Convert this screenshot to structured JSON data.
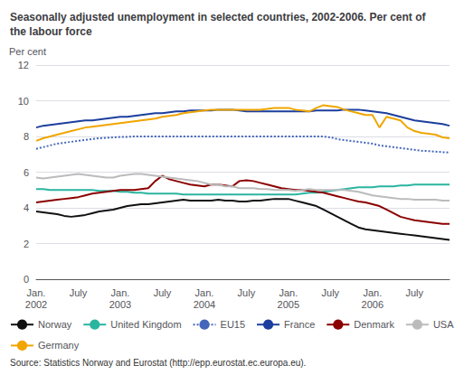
{
  "chart_data": {
    "type": "line",
    "title": "Seasonally adjusted unemployment in selected countries, 2002-2006. Per cent of\nthe labour force",
    "ylabel": "Per cent",
    "annotations": [
      "Source: Statistics Norway and Eurostat (http://epp.eurostat.ec.europa.eu)."
    ],
    "categories": [
      "Jan.\n2002",
      null,
      null,
      null,
      null,
      null,
      "July",
      null,
      null,
      null,
      null,
      null,
      "Jan.\n2003",
      null,
      null,
      null,
      null,
      null,
      "July",
      null,
      null,
      null,
      null,
      null,
      "Jan.\n2004",
      null,
      null,
      null,
      null,
      null,
      "July",
      null,
      null,
      null,
      null,
      null,
      "Jan.\n2005",
      null,
      null,
      null,
      null,
      null,
      "July",
      null,
      null,
      null,
      null,
      null,
      "Jan.\n2006",
      null,
      null,
      null,
      null,
      null,
      "July",
      null,
      null,
      null,
      null,
      null
    ],
    "ylim": [
      0,
      12
    ],
    "yticks": [
      0,
      2,
      4,
      6,
      8,
      10,
      12
    ],
    "grid": true,
    "legend": "bottom",
    "series": [
      {
        "name": "Norway",
        "color": "#111111",
        "line_style": "solid",
        "values": [
          3.8,
          3.75,
          3.7,
          3.65,
          3.55,
          3.5,
          3.55,
          3.6,
          3.7,
          3.8,
          3.85,
          3.9,
          4.0,
          4.1,
          4.15,
          4.2,
          4.2,
          4.25,
          4.3,
          4.35,
          4.4,
          4.45,
          4.4,
          4.4,
          4.4,
          4.4,
          4.45,
          4.4,
          4.4,
          4.35,
          4.35,
          4.4,
          4.4,
          4.45,
          4.5,
          4.5,
          4.5,
          4.4,
          4.3,
          4.2,
          4.1,
          3.9,
          3.7,
          3.5,
          3.3,
          3.1,
          2.9,
          2.8,
          2.75,
          2.7,
          2.65,
          2.6,
          2.55,
          2.5,
          2.45,
          2.4,
          2.35,
          2.3,
          2.25,
          2.2
        ]
      },
      {
        "name": "United Kingdom",
        "color": "#2ab5a0",
        "line_style": "solid",
        "values": [
          5.05,
          5.05,
          5.0,
          5.0,
          5.0,
          5.0,
          5.0,
          5.0,
          5.0,
          4.95,
          4.95,
          4.95,
          4.9,
          4.9,
          4.85,
          4.85,
          4.8,
          4.8,
          4.8,
          4.8,
          4.8,
          4.75,
          4.75,
          4.75,
          4.75,
          4.75,
          4.75,
          4.75,
          4.75,
          4.75,
          4.75,
          4.75,
          4.75,
          4.75,
          4.75,
          4.75,
          4.75,
          4.75,
          4.8,
          4.85,
          4.85,
          4.9,
          4.95,
          5.0,
          5.05,
          5.1,
          5.15,
          5.15,
          5.15,
          5.2,
          5.2,
          5.2,
          5.25,
          5.25,
          5.3,
          5.3,
          5.3,
          5.3,
          5.3,
          5.3
        ]
      },
      {
        "name": "EU15",
        "color": "#4466bb",
        "line_style": "dotted",
        "values": [
          7.3,
          7.4,
          7.5,
          7.6,
          7.65,
          7.7,
          7.75,
          7.8,
          7.85,
          7.9,
          7.92,
          7.95,
          7.97,
          7.98,
          8.0,
          8.0,
          8.0,
          8.0,
          8.0,
          8.0,
          8.0,
          8.0,
          8.0,
          8.0,
          8.0,
          8.0,
          8.0,
          8.0,
          8.0,
          8.0,
          8.0,
          8.0,
          8.0,
          8.0,
          8.0,
          8.0,
          8.0,
          8.0,
          8.0,
          8.0,
          8.0,
          8.0,
          7.95,
          7.85,
          7.8,
          7.75,
          7.7,
          7.65,
          7.6,
          7.5,
          7.45,
          7.4,
          7.35,
          7.3,
          7.25,
          7.2,
          7.18,
          7.15,
          7.12,
          7.1
        ]
      },
      {
        "name": "France",
        "color": "#1c3f9e",
        "line_style": "solid",
        "values": [
          8.5,
          8.6,
          8.65,
          8.7,
          8.75,
          8.8,
          8.85,
          8.9,
          8.9,
          8.95,
          9.0,
          9.05,
          9.1,
          9.1,
          9.15,
          9.2,
          9.25,
          9.3,
          9.3,
          9.35,
          9.4,
          9.4,
          9.45,
          9.45,
          9.45,
          9.45,
          9.5,
          9.5,
          9.5,
          9.45,
          9.4,
          9.4,
          9.4,
          9.4,
          9.4,
          9.4,
          9.4,
          9.4,
          9.4,
          9.4,
          9.45,
          9.45,
          9.45,
          9.45,
          9.5,
          9.5,
          9.5,
          9.45,
          9.4,
          9.35,
          9.3,
          9.2,
          9.1,
          9.0,
          8.9,
          8.85,
          8.8,
          8.75,
          8.7,
          8.6
        ]
      },
      {
        "name": "Denmark",
        "color": "#8b0000",
        "line_style": "solid",
        "values": [
          4.3,
          4.35,
          4.4,
          4.45,
          4.5,
          4.55,
          4.6,
          4.7,
          4.8,
          4.85,
          4.9,
          4.95,
          5.0,
          5.0,
          5.0,
          5.05,
          5.1,
          5.5,
          5.8,
          5.6,
          5.5,
          5.4,
          5.3,
          5.25,
          5.2,
          5.3,
          5.3,
          5.25,
          5.2,
          5.5,
          5.55,
          5.5,
          5.4,
          5.3,
          5.2,
          5.1,
          5.05,
          5.0,
          5.0,
          4.95,
          4.9,
          4.85,
          4.75,
          4.65,
          4.55,
          4.45,
          4.35,
          4.3,
          4.2,
          4.1,
          3.9,
          3.7,
          3.5,
          3.4,
          3.3,
          3.25,
          3.2,
          3.15,
          3.1,
          3.1
        ]
      },
      {
        "name": "USA",
        "color": "#bbbbbb",
        "line_style": "solid",
        "values": [
          5.7,
          5.65,
          5.7,
          5.75,
          5.8,
          5.85,
          5.9,
          5.85,
          5.8,
          5.75,
          5.7,
          5.7,
          5.8,
          5.85,
          5.9,
          5.9,
          5.85,
          5.8,
          5.75,
          5.7,
          5.65,
          5.6,
          5.55,
          5.5,
          5.4,
          5.3,
          5.3,
          5.2,
          5.2,
          5.1,
          5.1,
          5.1,
          5.05,
          5.05,
          5.0,
          5.0,
          5.0,
          4.95,
          5.0,
          5.05,
          5.0,
          5.0,
          5.0,
          5.0,
          5.0,
          4.95,
          4.9,
          4.8,
          4.7,
          4.65,
          4.6,
          4.55,
          4.5,
          4.5,
          4.45,
          4.45,
          4.45,
          4.45,
          4.4,
          4.4
        ]
      },
      {
        "name": "Germany",
        "color": "#f0a500",
        "line_style": "solid",
        "values": [
          7.75,
          7.9,
          8.0,
          8.1,
          8.2,
          8.3,
          8.4,
          8.5,
          8.55,
          8.6,
          8.65,
          8.7,
          8.75,
          8.8,
          8.85,
          8.9,
          8.95,
          9.0,
          9.1,
          9.15,
          9.2,
          9.3,
          9.35,
          9.4,
          9.45,
          9.5,
          9.5,
          9.5,
          9.5,
          9.5,
          9.5,
          9.5,
          9.5,
          9.55,
          9.6,
          9.6,
          9.6,
          9.5,
          9.45,
          9.4,
          9.6,
          9.75,
          9.7,
          9.65,
          9.5,
          9.4,
          9.3,
          9.2,
          9.2,
          8.5,
          9.1,
          9.0,
          8.9,
          8.5,
          8.3,
          8.2,
          8.15,
          8.1,
          7.95,
          7.9
        ]
      }
    ]
  }
}
